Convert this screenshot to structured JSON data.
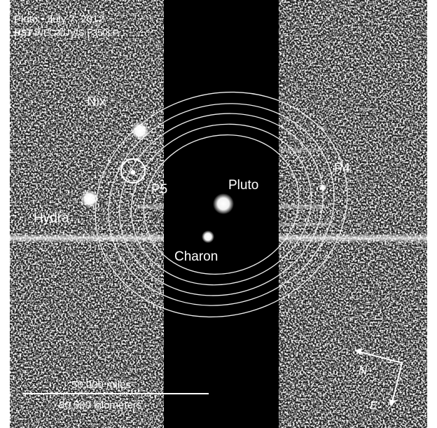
{
  "title": {
    "date_line": "Pluto • July 7, 2012",
    "instrument_prefix": "HST",
    "instrument_rest": " WFC3/UVIS F350LP"
  },
  "labels": {
    "nix": "Nix",
    "p5": "P5",
    "hydra": "Hydra",
    "pluto": "Pluto",
    "p4": "P4",
    "charon": "Charon"
  },
  "scale_bar": {
    "miles": "50,000 miles",
    "kilometers": "80,500 kilometers"
  },
  "compass": {
    "north": "N",
    "east": "E"
  },
  "colors": {
    "sky": "#1a1a1a",
    "occulting_band": "#000000",
    "text": "#ffffff",
    "orbits": "#f2f2f2"
  }
}
